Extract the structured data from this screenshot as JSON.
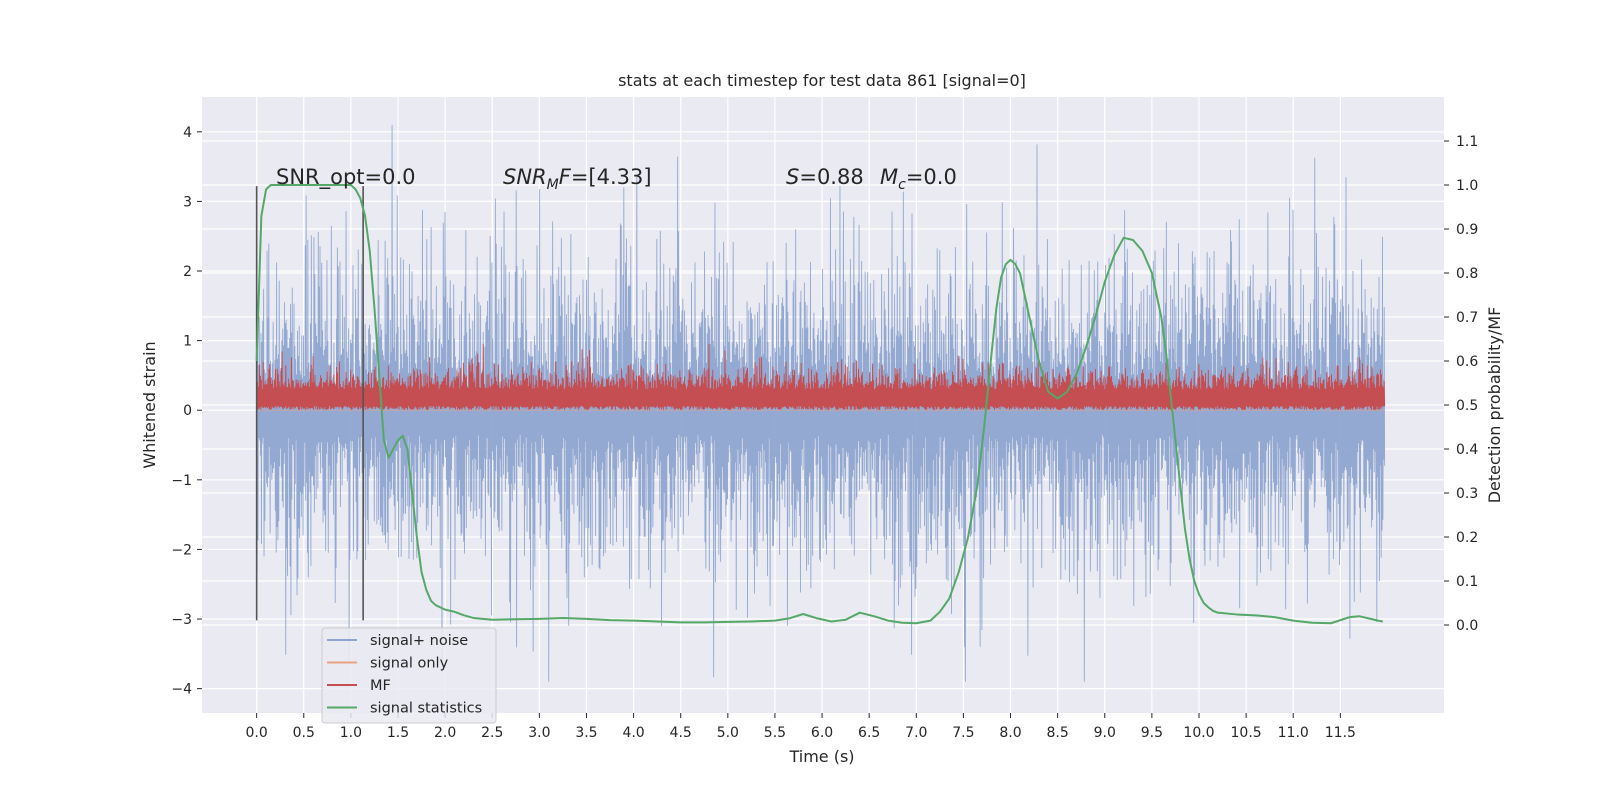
{
  "chart_data": {
    "type": "line",
    "title": "stats at each timestep for test data 861 [signal=0]",
    "xlabel": "Time (s)",
    "ylabel_left": "Whitened strain",
    "ylabel_right": "Detection probability/MF",
    "xlim": [
      -0.58,
      12.6
    ],
    "ylim_left": [
      -4.35,
      4.5
    ],
    "ylim_right": [
      -0.2,
      1.2
    ],
    "grid": true,
    "legend_placement": "lower-left",
    "x_ticks": [
      0.0,
      0.5,
      1.0,
      1.5,
      2.0,
      2.5,
      3.0,
      3.5,
      4.0,
      4.5,
      5.0,
      5.5,
      6.0,
      6.5,
      7.0,
      7.5,
      8.0,
      8.5,
      9.0,
      9.5,
      10.0,
      10.5,
      11.0,
      11.5
    ],
    "x_tick_labels": [
      "0.0",
      "0.5",
      "1.0",
      "1.5",
      "2.0",
      "2.5",
      "3.0",
      "3.5",
      "4.0",
      "4.5",
      "5.0",
      "5.5",
      "6.0",
      "6.5",
      "7.0",
      "7.5",
      "8.0",
      "8.5",
      "9.0",
      "9.5",
      "10.0",
      "10.5",
      "11.0",
      "11.5"
    ],
    "y_left_ticks": [
      4,
      3,
      2,
      1,
      0,
      -1,
      -2,
      -3,
      -4
    ],
    "y_left_tick_labels": [
      "4",
      "3",
      "2",
      "1",
      "0",
      "−1",
      "−2",
      "−3",
      "−4"
    ],
    "y_right_ticks": [
      1.1,
      1.0,
      0.9,
      0.8,
      0.7,
      0.6,
      0.5,
      0.4,
      0.3,
      0.2,
      0.1,
      0.0
    ],
    "y_right_tick_labels": [
      "1.1",
      "1.0",
      "0.9",
      "0.8",
      "0.7",
      "0.6",
      "0.5",
      "0.4",
      "0.3",
      "0.2",
      "0.1",
      "0.0"
    ],
    "annotations": {
      "snr_opt": "SNR_opt=0.0",
      "snr_mf_sym": "SNR",
      "snr_mf_sub": "M",
      "snr_mf_sym2": "F",
      "snr_mf_value": "=[4.33]",
      "s_sym": "S",
      "s_value": "=0.88",
      "mc_sym": "M",
      "mc_sub": "c",
      "mc_value": "=0.0"
    },
    "vertical_markers": [
      0.0,
      1.13
    ],
    "series": [
      {
        "name": "signal+ noise",
        "color": "#8fa5cf",
        "description": "whitened noise trace, roughly Gaussian with std ~1.1, extremes about -3.9 to 4.1",
        "min": -3.9,
        "max": 4.1
      },
      {
        "name": "signal only",
        "color": "#e9a185",
        "values_constant": 0.0
      },
      {
        "name": "MF",
        "color": "#c44e52",
        "description": "matched-filter output on left axis, fluctuating between about 0.0 and 0.9"
      },
      {
        "name": "signal statistics",
        "color": "#55a868",
        "axis": "right",
        "x": [
          0.0,
          0.05,
          0.1,
          0.15,
          0.2,
          0.3,
          0.4,
          0.5,
          0.6,
          0.7,
          0.8,
          0.9,
          0.95,
          1.0,
          1.05,
          1.1,
          1.15,
          1.2,
          1.25,
          1.3,
          1.35,
          1.4,
          1.45,
          1.5,
          1.55,
          1.6,
          1.65,
          1.7,
          1.75,
          1.8,
          1.85,
          1.9,
          2.0,
          2.1,
          2.2,
          2.3,
          2.5,
          2.75,
          3.0,
          3.25,
          3.5,
          3.75,
          4.0,
          4.25,
          4.5,
          4.75,
          5.0,
          5.25,
          5.5,
          5.65,
          5.8,
          5.95,
          6.1,
          6.25,
          6.4,
          6.55,
          6.7,
          6.85,
          7.0,
          7.15,
          7.25,
          7.35,
          7.45,
          7.55,
          7.65,
          7.72,
          7.8,
          7.85,
          7.9,
          7.95,
          8.0,
          8.05,
          8.1,
          8.15,
          8.2,
          8.3,
          8.4,
          8.5,
          8.6,
          8.7,
          8.8,
          8.9,
          9.0,
          9.1,
          9.2,
          9.3,
          9.4,
          9.5,
          9.55,
          9.6,
          9.65,
          9.7,
          9.75,
          9.8,
          9.85,
          9.9,
          9.95,
          10.0,
          10.05,
          10.1,
          10.15,
          10.2,
          10.3,
          10.4,
          10.6,
          10.8,
          11.0,
          11.2,
          11.4,
          11.6,
          11.7,
          11.8,
          11.9,
          11.95
        ],
        "values": [
          0.6,
          0.93,
          0.99,
          1.0,
          1.0,
          1.0,
          1.0,
          1.0,
          1.0,
          1.0,
          1.0,
          1.0,
          1.0,
          1.0,
          0.99,
          0.97,
          0.93,
          0.85,
          0.72,
          0.57,
          0.42,
          0.38,
          0.4,
          0.42,
          0.43,
          0.4,
          0.3,
          0.2,
          0.12,
          0.08,
          0.055,
          0.045,
          0.035,
          0.03,
          0.022,
          0.016,
          0.012,
          0.013,
          0.014,
          0.016,
          0.014,
          0.011,
          0.01,
          0.008,
          0.006,
          0.006,
          0.007,
          0.008,
          0.01,
          0.015,
          0.025,
          0.015,
          0.008,
          0.012,
          0.028,
          0.02,
          0.01,
          0.005,
          0.004,
          0.01,
          0.03,
          0.06,
          0.12,
          0.2,
          0.32,
          0.45,
          0.62,
          0.72,
          0.79,
          0.82,
          0.83,
          0.82,
          0.8,
          0.75,
          0.7,
          0.6,
          0.53,
          0.515,
          0.53,
          0.57,
          0.63,
          0.7,
          0.78,
          0.84,
          0.88,
          0.875,
          0.85,
          0.8,
          0.75,
          0.7,
          0.62,
          0.52,
          0.42,
          0.32,
          0.22,
          0.15,
          0.1,
          0.07,
          0.05,
          0.04,
          0.032,
          0.028,
          0.026,
          0.024,
          0.022,
          0.018,
          0.01,
          0.005,
          0.004,
          0.018,
          0.02,
          0.015,
          0.01,
          0.008
        ]
      }
    ]
  }
}
